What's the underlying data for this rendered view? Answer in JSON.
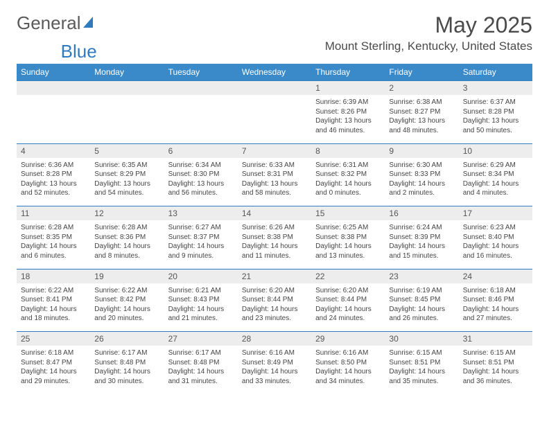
{
  "brand": {
    "part1": "General",
    "part2": "Blue"
  },
  "title": "May 2025",
  "location": "Mount Sterling, Kentucky, United States",
  "colors": {
    "header_bg": "#3a8ac9",
    "header_text": "#ffffff",
    "row_border": "#2f7bbf",
    "daynum_bg": "#ededed",
    "text": "#444444",
    "title_text": "#4a4a4a"
  },
  "day_names": [
    "Sunday",
    "Monday",
    "Tuesday",
    "Wednesday",
    "Thursday",
    "Friday",
    "Saturday"
  ],
  "weeks": [
    {
      "nums": [
        "",
        "",
        "",
        "",
        "1",
        "2",
        "3"
      ],
      "cells": [
        {
          "sunrise": "",
          "sunset": "",
          "daylight1": "",
          "daylight2": ""
        },
        {
          "sunrise": "",
          "sunset": "",
          "daylight1": "",
          "daylight2": ""
        },
        {
          "sunrise": "",
          "sunset": "",
          "daylight1": "",
          "daylight2": ""
        },
        {
          "sunrise": "",
          "sunset": "",
          "daylight1": "",
          "daylight2": ""
        },
        {
          "sunrise": "Sunrise: 6:39 AM",
          "sunset": "Sunset: 8:26 PM",
          "daylight1": "Daylight: 13 hours",
          "daylight2": "and 46 minutes."
        },
        {
          "sunrise": "Sunrise: 6:38 AM",
          "sunset": "Sunset: 8:27 PM",
          "daylight1": "Daylight: 13 hours",
          "daylight2": "and 48 minutes."
        },
        {
          "sunrise": "Sunrise: 6:37 AM",
          "sunset": "Sunset: 8:28 PM",
          "daylight1": "Daylight: 13 hours",
          "daylight2": "and 50 minutes."
        }
      ]
    },
    {
      "nums": [
        "4",
        "5",
        "6",
        "7",
        "8",
        "9",
        "10"
      ],
      "cells": [
        {
          "sunrise": "Sunrise: 6:36 AM",
          "sunset": "Sunset: 8:28 PM",
          "daylight1": "Daylight: 13 hours",
          "daylight2": "and 52 minutes."
        },
        {
          "sunrise": "Sunrise: 6:35 AM",
          "sunset": "Sunset: 8:29 PM",
          "daylight1": "Daylight: 13 hours",
          "daylight2": "and 54 minutes."
        },
        {
          "sunrise": "Sunrise: 6:34 AM",
          "sunset": "Sunset: 8:30 PM",
          "daylight1": "Daylight: 13 hours",
          "daylight2": "and 56 minutes."
        },
        {
          "sunrise": "Sunrise: 6:33 AM",
          "sunset": "Sunset: 8:31 PM",
          "daylight1": "Daylight: 13 hours",
          "daylight2": "and 58 minutes."
        },
        {
          "sunrise": "Sunrise: 6:31 AM",
          "sunset": "Sunset: 8:32 PM",
          "daylight1": "Daylight: 14 hours",
          "daylight2": "and 0 minutes."
        },
        {
          "sunrise": "Sunrise: 6:30 AM",
          "sunset": "Sunset: 8:33 PM",
          "daylight1": "Daylight: 14 hours",
          "daylight2": "and 2 minutes."
        },
        {
          "sunrise": "Sunrise: 6:29 AM",
          "sunset": "Sunset: 8:34 PM",
          "daylight1": "Daylight: 14 hours",
          "daylight2": "and 4 minutes."
        }
      ]
    },
    {
      "nums": [
        "11",
        "12",
        "13",
        "14",
        "15",
        "16",
        "17"
      ],
      "cells": [
        {
          "sunrise": "Sunrise: 6:28 AM",
          "sunset": "Sunset: 8:35 PM",
          "daylight1": "Daylight: 14 hours",
          "daylight2": "and 6 minutes."
        },
        {
          "sunrise": "Sunrise: 6:28 AM",
          "sunset": "Sunset: 8:36 PM",
          "daylight1": "Daylight: 14 hours",
          "daylight2": "and 8 minutes."
        },
        {
          "sunrise": "Sunrise: 6:27 AM",
          "sunset": "Sunset: 8:37 PM",
          "daylight1": "Daylight: 14 hours",
          "daylight2": "and 9 minutes."
        },
        {
          "sunrise": "Sunrise: 6:26 AM",
          "sunset": "Sunset: 8:38 PM",
          "daylight1": "Daylight: 14 hours",
          "daylight2": "and 11 minutes."
        },
        {
          "sunrise": "Sunrise: 6:25 AM",
          "sunset": "Sunset: 8:38 PM",
          "daylight1": "Daylight: 14 hours",
          "daylight2": "and 13 minutes."
        },
        {
          "sunrise": "Sunrise: 6:24 AM",
          "sunset": "Sunset: 8:39 PM",
          "daylight1": "Daylight: 14 hours",
          "daylight2": "and 15 minutes."
        },
        {
          "sunrise": "Sunrise: 6:23 AM",
          "sunset": "Sunset: 8:40 PM",
          "daylight1": "Daylight: 14 hours",
          "daylight2": "and 16 minutes."
        }
      ]
    },
    {
      "nums": [
        "18",
        "19",
        "20",
        "21",
        "22",
        "23",
        "24"
      ],
      "cells": [
        {
          "sunrise": "Sunrise: 6:22 AM",
          "sunset": "Sunset: 8:41 PM",
          "daylight1": "Daylight: 14 hours",
          "daylight2": "and 18 minutes."
        },
        {
          "sunrise": "Sunrise: 6:22 AM",
          "sunset": "Sunset: 8:42 PM",
          "daylight1": "Daylight: 14 hours",
          "daylight2": "and 20 minutes."
        },
        {
          "sunrise": "Sunrise: 6:21 AM",
          "sunset": "Sunset: 8:43 PM",
          "daylight1": "Daylight: 14 hours",
          "daylight2": "and 21 minutes."
        },
        {
          "sunrise": "Sunrise: 6:20 AM",
          "sunset": "Sunset: 8:44 PM",
          "daylight1": "Daylight: 14 hours",
          "daylight2": "and 23 minutes."
        },
        {
          "sunrise": "Sunrise: 6:20 AM",
          "sunset": "Sunset: 8:44 PM",
          "daylight1": "Daylight: 14 hours",
          "daylight2": "and 24 minutes."
        },
        {
          "sunrise": "Sunrise: 6:19 AM",
          "sunset": "Sunset: 8:45 PM",
          "daylight1": "Daylight: 14 hours",
          "daylight2": "and 26 minutes."
        },
        {
          "sunrise": "Sunrise: 6:18 AM",
          "sunset": "Sunset: 8:46 PM",
          "daylight1": "Daylight: 14 hours",
          "daylight2": "and 27 minutes."
        }
      ]
    },
    {
      "nums": [
        "25",
        "26",
        "27",
        "28",
        "29",
        "30",
        "31"
      ],
      "cells": [
        {
          "sunrise": "Sunrise: 6:18 AM",
          "sunset": "Sunset: 8:47 PM",
          "daylight1": "Daylight: 14 hours",
          "daylight2": "and 29 minutes."
        },
        {
          "sunrise": "Sunrise: 6:17 AM",
          "sunset": "Sunset: 8:48 PM",
          "daylight1": "Daylight: 14 hours",
          "daylight2": "and 30 minutes."
        },
        {
          "sunrise": "Sunrise: 6:17 AM",
          "sunset": "Sunset: 8:48 PM",
          "daylight1": "Daylight: 14 hours",
          "daylight2": "and 31 minutes."
        },
        {
          "sunrise": "Sunrise: 6:16 AM",
          "sunset": "Sunset: 8:49 PM",
          "daylight1": "Daylight: 14 hours",
          "daylight2": "and 33 minutes."
        },
        {
          "sunrise": "Sunrise: 6:16 AM",
          "sunset": "Sunset: 8:50 PM",
          "daylight1": "Daylight: 14 hours",
          "daylight2": "and 34 minutes."
        },
        {
          "sunrise": "Sunrise: 6:15 AM",
          "sunset": "Sunset: 8:51 PM",
          "daylight1": "Daylight: 14 hours",
          "daylight2": "and 35 minutes."
        },
        {
          "sunrise": "Sunrise: 6:15 AM",
          "sunset": "Sunset: 8:51 PM",
          "daylight1": "Daylight: 14 hours",
          "daylight2": "and 36 minutes."
        }
      ]
    }
  ]
}
